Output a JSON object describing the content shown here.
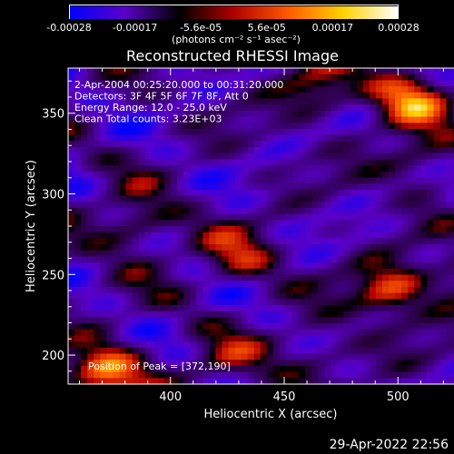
{
  "chart_data": {
    "type": "heatmap",
    "title": "Reconstructed RHESSI Image",
    "xlabel": "Heliocentric X (arcsec)",
    "ylabel": "Heliocentric Y (arcsec)",
    "xlim": [
      355,
      541
    ],
    "ylim": [
      182,
      378
    ],
    "x_ticks": [
      400,
      450,
      500
    ],
    "y_ticks": [
      200,
      250,
      300,
      350
    ],
    "colorbar": {
      "ticks": [
        "-0.00028",
        "-0.00017",
        "-5.6e-05",
        "5.6e-05",
        "0.00017",
        "0.00028"
      ],
      "range": [
        -0.00028,
        0.00028
      ],
      "unit_label": "(photons cm⁻² s⁻¹ asec⁻²)",
      "colors": [
        "#0000ff",
        "#5a00c8",
        "#000000",
        "#b00000",
        "#ff5a00",
        "#ffd200",
        "#ffffff"
      ]
    },
    "annotations": [
      "2-Apr-2004 00:25:20.000 to 00:31:20.000",
      "Detectors: 3F 4F 5F 6F 7F 8F, Att 0",
      "Energy Range: 12.0 - 25.0 keV",
      "Clean     Total counts: 3.23E+03"
    ],
    "peak_label": "Position of Peak = [372,190]",
    "peak": [
      372,
      190
    ],
    "bright_sources": [
      {
        "x": 372,
        "y": 190,
        "value": 0.00028
      },
      {
        "x": 505,
        "y": 360,
        "value": 0.00024
      },
      {
        "x": 497,
        "y": 240,
        "value": 0.00022
      },
      {
        "x": 385,
        "y": 280,
        "value": 0.00016
      },
      {
        "x": 430,
        "y": 260,
        "value": 0.00015
      },
      {
        "x": 465,
        "y": 365,
        "value": 0.00015
      },
      {
        "x": 530,
        "y": 245,
        "value": 0.00012
      },
      {
        "x": 425,
        "y": 195,
        "value": 0.0001
      },
      {
        "x": 510,
        "y": 320,
        "value": 0.00012
      },
      {
        "x": 465,
        "y": 200,
        "value": 0.0001
      }
    ]
  },
  "footer": {
    "date": "29-Apr-2022 22:56"
  }
}
